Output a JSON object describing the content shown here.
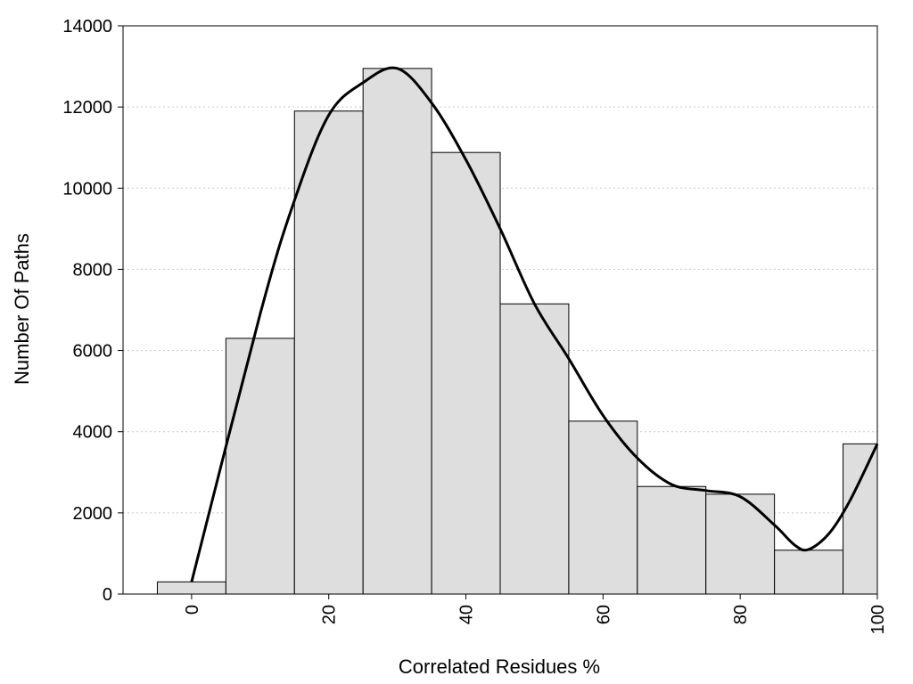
{
  "chart_data": {
    "type": "bar",
    "xlabel": "Correlated Residues %",
    "ylabel": "Number Of Paths",
    "xlim": [
      -10,
      100
    ],
    "ylim": [
      0,
      14000
    ],
    "x_ticks": [
      "0",
      "20",
      "40",
      "60",
      "80",
      "100"
    ],
    "y_ticks": [
      "0",
      "2000",
      "4000",
      "6000",
      "8000",
      "10000",
      "12000",
      "14000"
    ],
    "grid": "horizontal dotted",
    "bar_color": "#dedede",
    "bins": [
      0,
      10,
      20,
      30,
      40,
      50,
      60,
      70,
      80,
      90,
      100
    ],
    "values": [
      300,
      6300,
      11900,
      12950,
      10880,
      7150,
      4260,
      2650,
      2460,
      1080,
      3700
    ],
    "curve": {
      "x": [
        0,
        10,
        15,
        20,
        25,
        30,
        35,
        40,
        45,
        50,
        55,
        60,
        65,
        70,
        75,
        80,
        85,
        88,
        90,
        93,
        96,
        100
      ],
      "y": [
        300,
        6900,
        9700,
        11800,
        12600,
        12950,
        12100,
        10700,
        9000,
        7150,
        5800,
        4400,
        3350,
        2700,
        2550,
        2400,
        1700,
        1200,
        1100,
        1500,
        2300,
        3700
      ]
    }
  }
}
